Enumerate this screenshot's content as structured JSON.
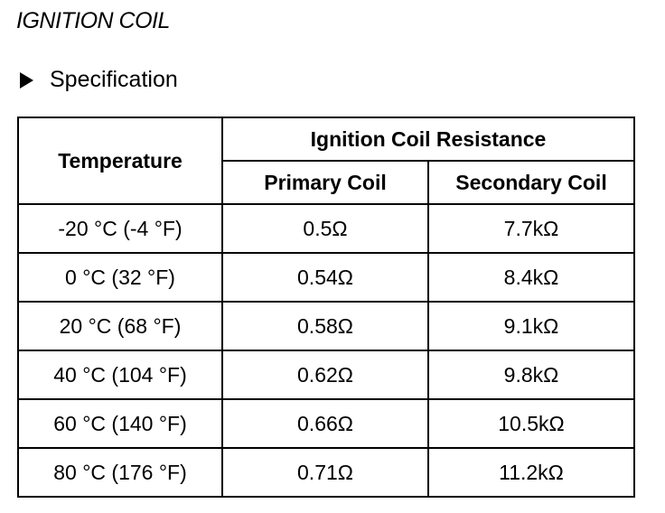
{
  "document": {
    "title": "IGNITION COIL",
    "section_heading": "Specification",
    "section_marker_icon": "right-triangle-bullet"
  },
  "table": {
    "header_temperature": "Temperature",
    "header_group": "Ignition Coil Resistance",
    "header_primary": "Primary Coil",
    "header_secondary": "Secondary Coil",
    "rows": [
      {
        "temperature": "-20 °C (-4 °F)",
        "primary": "0.5Ω",
        "secondary": "7.7kΩ"
      },
      {
        "temperature": "0 °C (32 °F)",
        "primary": "0.54Ω",
        "secondary": "8.4kΩ"
      },
      {
        "temperature": "20 °C (68 °F)",
        "primary": "0.58Ω",
        "secondary": "9.1kΩ"
      },
      {
        "temperature": "40 °C (104 °F)",
        "primary": "0.62Ω",
        "secondary": "9.8kΩ"
      },
      {
        "temperature": "60 °C (140 °F)",
        "primary": "0.66Ω",
        "secondary": "10.5kΩ"
      },
      {
        "temperature": "80 °C (176 °F)",
        "primary": "0.71Ω",
        "secondary": "11.2kΩ"
      }
    ]
  }
}
